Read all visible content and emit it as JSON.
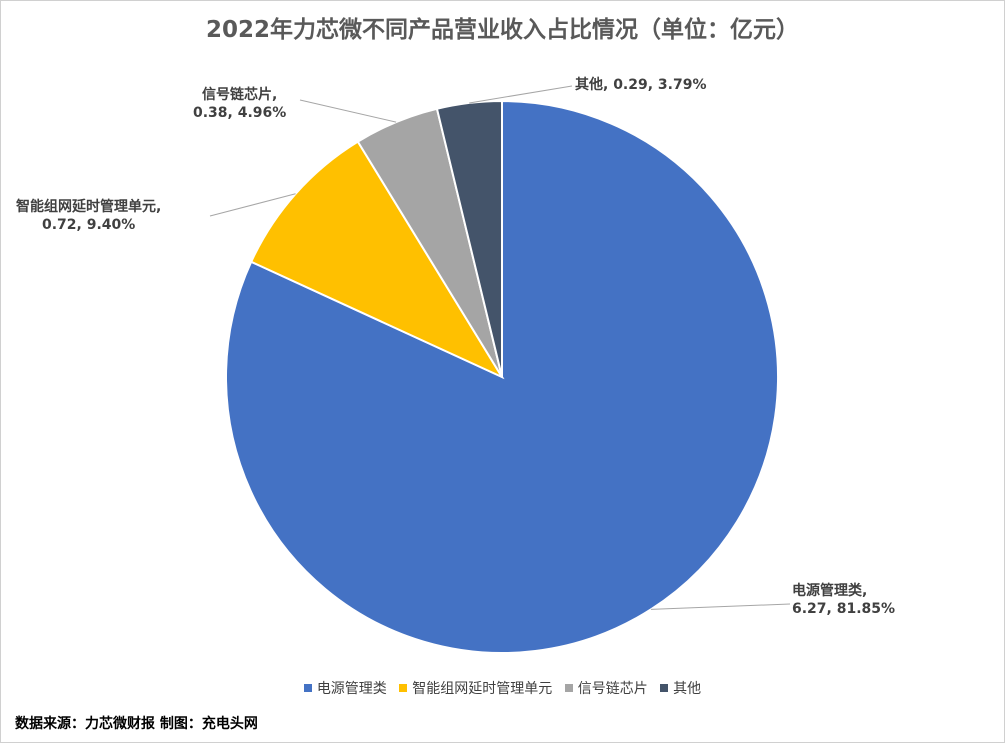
{
  "chart_data": {
    "type": "pie",
    "title": "2022年力芯微不同产品营业收入占比情况（单位：亿元）",
    "series": [
      {
        "name": "电源管理类",
        "value": 6.27,
        "percent": "81.85%",
        "color": "#4472C4"
      },
      {
        "name": "智能组网延时管理单元",
        "value": 0.72,
        "percent": "9.40%",
        "color": "#FFC000"
      },
      {
        "name": "信号链芯片",
        "value": 0.38,
        "percent": "4.96%",
        "color": "#A5A5A5"
      },
      {
        "name": "其他",
        "value": 0.29,
        "percent": "3.79%",
        "color": "#44546A"
      }
    ],
    "data_labels": [
      {
        "line1": "电源管理类,",
        "line2": "6.27, 81.85%"
      },
      {
        "line1": "智能组网延时管理单元,",
        "line2": "0.72, 9.40%"
      },
      {
        "line1": "信号链芯片,",
        "line2": "0.38, 4.96%"
      },
      {
        "line1": "其他, 0.29, 3.79%",
        "line2": ""
      }
    ],
    "legend_position": "bottom"
  },
  "source_note": "数据来源：力芯微财报 制图：充电头网"
}
